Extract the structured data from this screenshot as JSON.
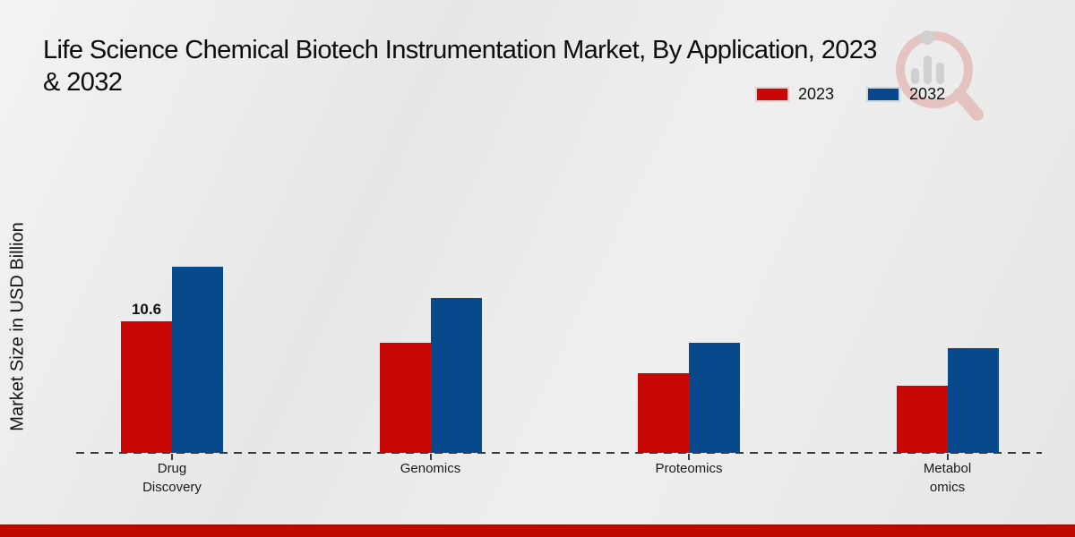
{
  "title": {
    "line1": "Life Science Chemical Biotech Instrumentation Market, By Application, 2023",
    "line2": "& 2032"
  },
  "y_axis_label": "Market Size in USD Billion",
  "legend": {
    "items": [
      {
        "label": "2023",
        "color": "#c90706"
      },
      {
        "label": "2032",
        "color": "#07498a"
      }
    ]
  },
  "watermark_icon": "magnifier-bar-chart-logo",
  "colors": {
    "series_2023": "#c90706",
    "series_2032": "#07498a",
    "baseline": "#3c3c3c",
    "footer_bar": "#c00a00",
    "background": "#e9e9ea"
  },
  "chart_data": {
    "type": "bar",
    "title": "Life Science Chemical Biotech Instrumentation Market, By Application, 2023 & 2032",
    "categories": [
      "Drug Discovery",
      "Genomics",
      "Proteomics",
      "Metabolomics"
    ],
    "category_label_lines": [
      [
        "Drug",
        "Discovery"
      ],
      [
        "Genomics"
      ],
      [
        "Proteomics"
      ],
      [
        "Metabol",
        "omics"
      ]
    ],
    "series": [
      {
        "name": "2023",
        "color": "#c90706",
        "values": [
          10.6,
          8.9,
          6.4,
          5.4
        ]
      },
      {
        "name": "2032",
        "color": "#07498a",
        "values": [
          15.0,
          12.5,
          8.9,
          8.4
        ]
      }
    ],
    "xlabel": "",
    "ylabel": "Market Size in USD Billion",
    "ylim": [
      0,
      16
    ],
    "grid": false,
    "legend_position": "top-right",
    "baseline_style": "dashed",
    "data_labels": [
      {
        "series": "2023",
        "category": "Drug Discovery",
        "text": "10.6"
      }
    ]
  }
}
